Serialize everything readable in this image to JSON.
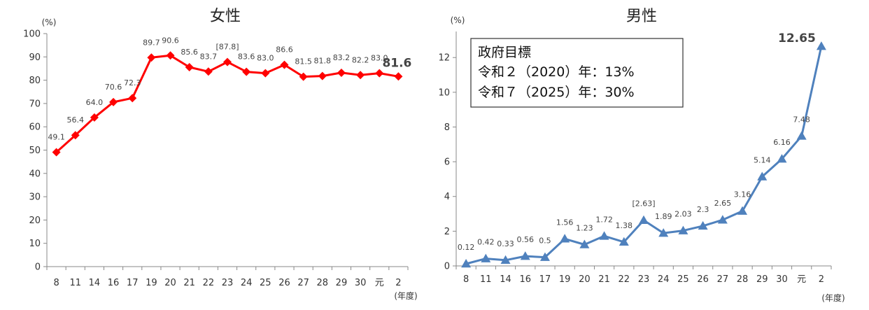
{
  "chart_data": [
    {
      "type": "line",
      "title": "女性",
      "y_unit_label": "(%)",
      "x_unit_label": "(年度)",
      "ylim": [
        0,
        100
      ],
      "y_ticks": [
        0,
        10,
        20,
        30,
        40,
        50,
        60,
        70,
        80,
        90,
        100
      ],
      "categories": [
        "8",
        "11",
        "14",
        "16",
        "17",
        "19",
        "20",
        "21",
        "22",
        "23",
        "24",
        "25",
        "26",
        "27",
        "28",
        "29",
        "30",
        "元",
        "2"
      ],
      "values": [
        49.1,
        56.4,
        64.0,
        70.6,
        72.3,
        89.7,
        90.6,
        85.6,
        83.7,
        87.8,
        83.6,
        83.0,
        86.6,
        81.5,
        81.8,
        83.2,
        82.2,
        83.0,
        81.6
      ],
      "value_labels": [
        "49.1",
        "56.4",
        "64.0",
        "70.6",
        "72.3",
        "89.7",
        "90.6",
        "85.6",
        "83.7",
        "[87.8]",
        "83.6",
        "83.0",
        "86.6",
        "81.5",
        "81.8",
        "83.2",
        "82.2",
        "83.0",
        "81.6"
      ],
      "color": "#ff0000",
      "marker": "diamond"
    },
    {
      "type": "line",
      "title": "男性",
      "y_unit_label": "(%)",
      "x_unit_label": "(年度)",
      "ylim": [
        0,
        13.5
      ],
      "y_ticks": [
        0,
        2,
        4,
        6,
        8,
        10,
        12
      ],
      "categories": [
        "8",
        "11",
        "14",
        "16",
        "17",
        "19",
        "20",
        "21",
        "22",
        "23",
        "24",
        "25",
        "26",
        "27",
        "28",
        "29",
        "30",
        "元",
        "2"
      ],
      "values": [
        0.12,
        0.42,
        0.33,
        0.56,
        0.5,
        1.56,
        1.23,
        1.72,
        1.38,
        2.63,
        1.89,
        2.03,
        2.3,
        2.65,
        3.16,
        5.14,
        6.16,
        7.48,
        12.65
      ],
      "value_labels": [
        "0.12",
        "0.42",
        "0.33",
        "0.56",
        "0.5",
        "1.56",
        "1.23",
        "1.72",
        "1.38",
        "[2.63]",
        "1.89",
        "2.03",
        "2.3",
        "2.65",
        "3.16",
        "5.14",
        "6.16",
        "7.48",
        "12.65"
      ],
      "color": "#4f81bd",
      "marker": "triangle",
      "annotation_box": {
        "lines": [
          "政府目標",
          "令和２（2020）年：13%",
          "令和７（2025）年：30%"
        ]
      }
    }
  ]
}
